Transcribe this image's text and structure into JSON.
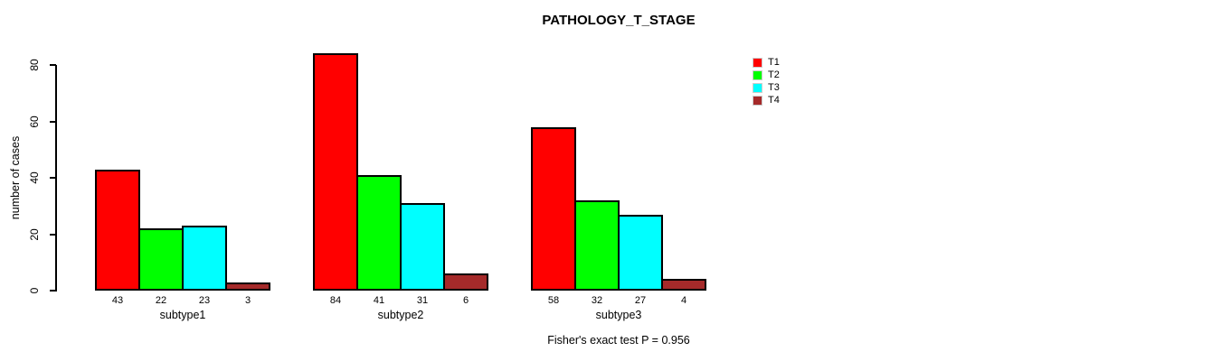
{
  "chart_data": {
    "type": "bar",
    "title": "PATHOLOGY_T_STAGE",
    "xlabel": "",
    "ylabel": "number of cases",
    "categories": [
      "subtype1",
      "subtype2",
      "subtype3"
    ],
    "series": [
      {
        "name": "T1",
        "color": "#FF0000",
        "values": [
          43,
          84,
          58
        ]
      },
      {
        "name": "T2",
        "color": "#00FF00",
        "values": [
          22,
          41,
          32
        ]
      },
      {
        "name": "T3",
        "color": "#00FFFF",
        "values": [
          23,
          31,
          27
        ]
      },
      {
        "name": "T4",
        "color": "#A52A2A",
        "values": [
          3,
          6,
          4
        ]
      }
    ],
    "yticks": [
      0,
      20,
      40,
      60,
      80
    ],
    "ylim": [
      0,
      80
    ],
    "grid": false,
    "legend_position": "top-right",
    "bar_value_labels": true,
    "annotation": "Fisher's exact test P = 0.956"
  }
}
